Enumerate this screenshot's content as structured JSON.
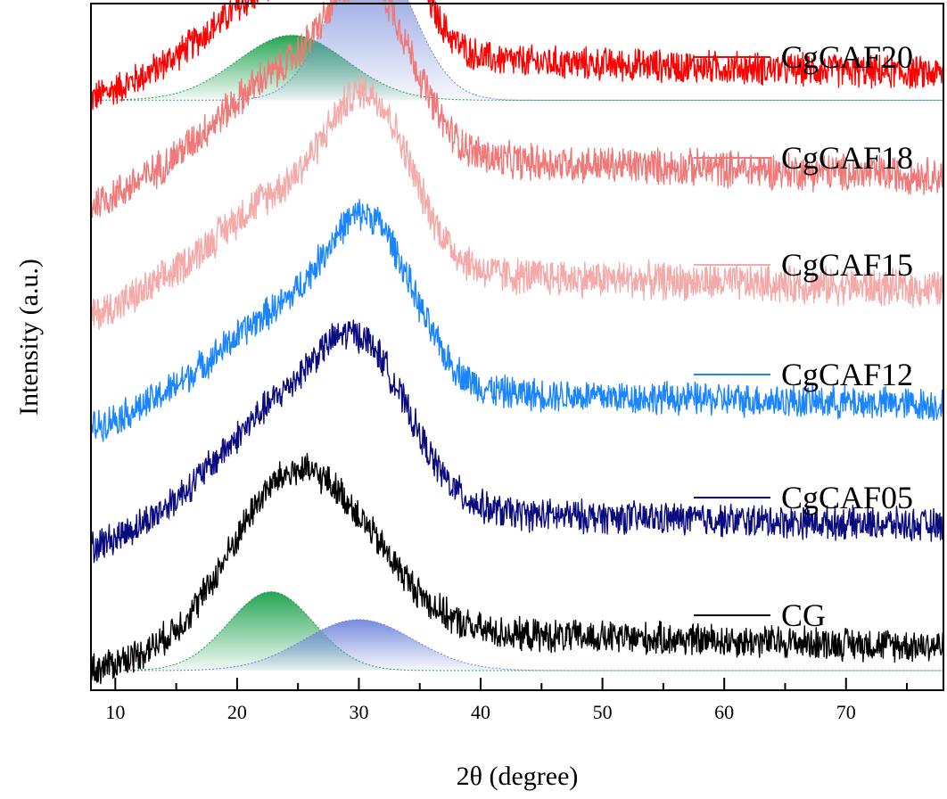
{
  "chart_data": {
    "type": "line",
    "title": "",
    "xlabel": "2θ (degree)",
    "ylabel": "Intensity (a.u.)",
    "xlim": [
      8,
      78
    ],
    "xticks": [
      10,
      20,
      30,
      40,
      50,
      60,
      70
    ],
    "yticks": [],
    "series": [
      {
        "name": "CgCAF20",
        "color": "#ff0000",
        "baseline": 12.3,
        "humps": [
          {
            "center": 24,
            "amp": 1.4,
            "width": 6
          },
          {
            "center": 31,
            "amp": 3.2,
            "width": 3.2
          }
        ],
        "background": 1.2,
        "noise": 0.4,
        "deconvolution": [
          {
            "color": "#1aa04a",
            "center": 24.5,
            "amp": 1.4,
            "width": 4.5
          },
          {
            "color": "#6f84d9",
            "center": 31,
            "amp": 3.3,
            "width": 3.3
          }
        ]
      },
      {
        "name": "CgCAF18",
        "color": "#f07878",
        "baseline": 10.0,
        "humps": [
          {
            "center": 24,
            "amp": 1.6,
            "width": 6
          },
          {
            "center": 31,
            "amp": 3.0,
            "width": 3.4
          }
        ],
        "background": 1.4,
        "noise": 0.45
      },
      {
        "name": "CgCAF15",
        "color": "#f5aaaa",
        "baseline": 7.6,
        "humps": [
          {
            "center": 24,
            "amp": 1.5,
            "width": 6
          },
          {
            "center": 31,
            "amp": 3.1,
            "width": 3.4
          }
        ],
        "background": 1.3,
        "noise": 0.45
      },
      {
        "name": "CgCAF12",
        "color": "#1a85ff",
        "baseline": 5.2,
        "humps": [
          {
            "center": 24,
            "amp": 1.5,
            "width": 6
          },
          {
            "center": 31,
            "amp": 3.0,
            "width": 3.5
          }
        ],
        "background": 1.1,
        "noise": 0.4
      },
      {
        "name": "CgCAF05",
        "color": "#0b0b80",
        "baseline": 2.6,
        "humps": [
          {
            "center": 24,
            "amp": 2.0,
            "width": 6
          },
          {
            "center": 30.5,
            "amp": 2.6,
            "width": 3.8
          }
        ],
        "background": 1.1,
        "noise": 0.4
      },
      {
        "name": "CG",
        "color": "#000000",
        "baseline": 0.0,
        "humps": [
          {
            "center": 23.5,
            "amp": 2.6,
            "width": 4.5
          },
          {
            "center": 29.5,
            "amp": 1.6,
            "width": 4.5
          }
        ],
        "background": 1.1,
        "noise": 0.4,
        "deconvolution": [
          {
            "color": "#1aa04a",
            "center": 22.8,
            "amp": 1.7,
            "width": 3.5
          },
          {
            "color": "#6f84d9",
            "center": 30,
            "amp": 1.1,
            "width": 4.5
          }
        ]
      }
    ]
  }
}
